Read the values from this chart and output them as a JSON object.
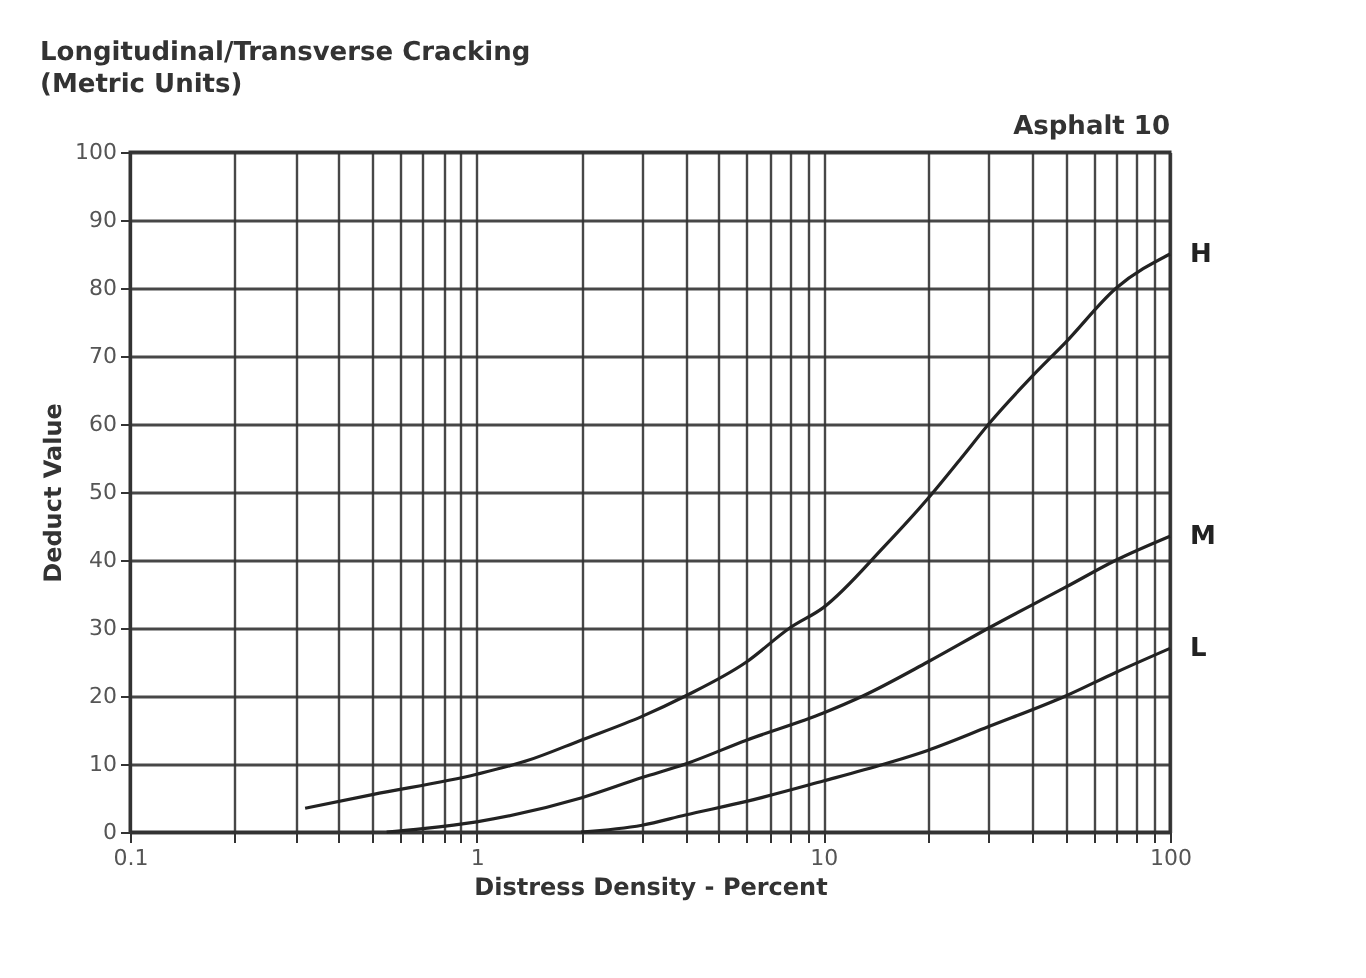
{
  "chart_data": {
    "type": "line",
    "title": "Longitudinal/Transverse Cracking",
    "subtitle": "(Metric Units)",
    "annotations": [
      "Asphalt 10"
    ],
    "xlabel": "Distress Density - Percent",
    "ylabel": "Deduct Value",
    "log": "x",
    "grid": true,
    "marker": "none",
    "line_style": "solid",
    "xlim": [
      0.1,
      100
    ],
    "ylim": [
      0,
      100
    ],
    "xticks": [
      0.1,
      {
        "value": 0.2,
        "label": null
      },
      {
        "value": 0.3,
        "label": null
      },
      {
        "value": 0.4,
        "label": null
      },
      {
        "value": 0.5,
        "label": null
      },
      {
        "value": 0.6,
        "label": null
      },
      {
        "value": 0.7,
        "label": null
      },
      {
        "value": 0.8,
        "label": null
      },
      {
        "value": 0.9,
        "label": null
      },
      1,
      {
        "value": 2,
        "label": null
      },
      {
        "value": 3,
        "label": null
      },
      {
        "value": 4,
        "label": null
      },
      {
        "value": 5,
        "label": null
      },
      {
        "value": 6,
        "label": null
      },
      {
        "value": 7,
        "label": null
      },
      {
        "value": 8,
        "label": null
      },
      {
        "value": 9,
        "label": null
      },
      10,
      {
        "value": 20,
        "label": null
      },
      {
        "value": 30,
        "label": null
      },
      {
        "value": 40,
        "label": null
      },
      {
        "value": 50,
        "label": null
      },
      {
        "value": 60,
        "label": null
      },
      {
        "value": 70,
        "label": null
      },
      {
        "value": 80,
        "label": null
      },
      {
        "value": 90,
        "label": null
      },
      100
    ],
    "yticks": [
      0,
      10,
      20,
      30,
      40,
      50,
      60,
      70,
      80,
      90,
      100
    ],
    "series": [
      {
        "name": "H",
        "color": "#222222",
        "x": [
          0.32,
          0.5,
          1,
          1.4,
          2,
          3,
          4,
          6,
          8,
          10,
          15,
          20,
          25,
          30,
          40,
          50,
          70,
          100
        ],
        "values": [
          3.5,
          5.5,
          8.5,
          10.5,
          13.5,
          17,
          20,
          25,
          30,
          33,
          42,
          49,
          55,
          60,
          67,
          72,
          80,
          85
        ]
      },
      {
        "name": "M",
        "color": "#222222",
        "x": [
          0.55,
          0.7,
          1,
          2,
          3,
          4,
          6,
          10,
          13,
          20,
          30,
          50,
          70,
          100
        ],
        "values": [
          0,
          0.5,
          1.5,
          5,
          8,
          10,
          13.5,
          17.5,
          20,
          25,
          30,
          36,
          40,
          43.5
        ]
      },
      {
        "name": "L",
        "color": "#222222",
        "x": [
          2,
          3,
          4,
          6,
          10,
          15,
          20,
          30,
          50,
          70,
          100
        ],
        "values": [
          0,
          1,
          2.5,
          4.5,
          7.5,
          10,
          12,
          15.5,
          20,
          23.5,
          27
        ]
      }
    ]
  }
}
